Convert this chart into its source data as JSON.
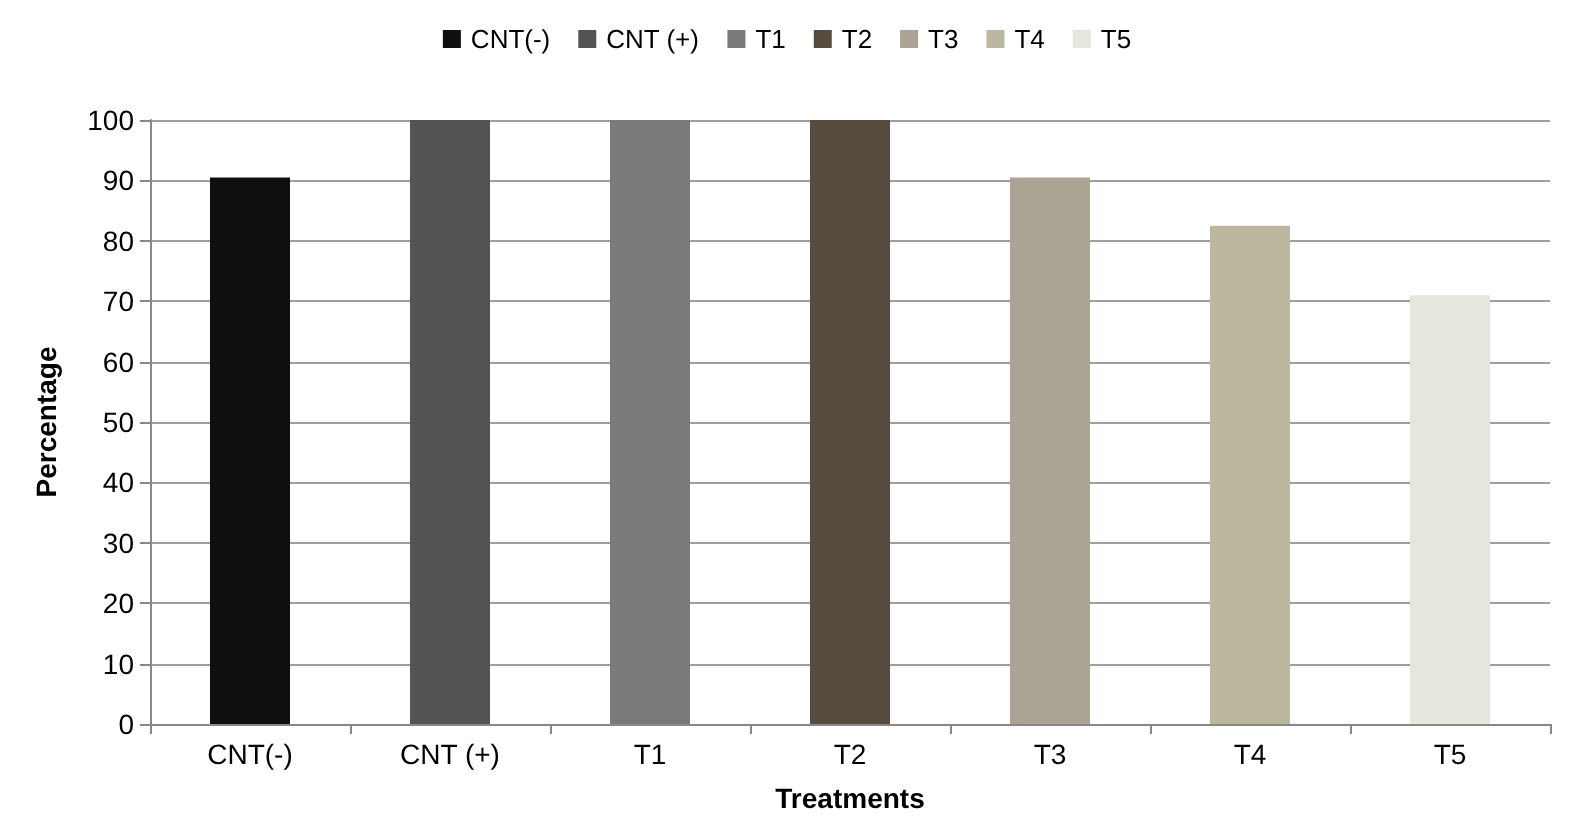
{
  "chart_data": {
    "type": "bar",
    "xlabel": "Treatments",
    "ylabel": "Percentage",
    "categories": [
      "CNT(-)",
      "CNT (+)",
      "T1",
      "T2",
      "T3",
      "T4",
      "T5"
    ],
    "series": [
      {
        "name": "CNT(-)",
        "color": "#0f0f0f",
        "values": [
          90.5,
          null,
          null,
          null,
          null,
          null,
          null
        ]
      },
      {
        "name": "CNT (+)",
        "color": "#545454",
        "values": [
          null,
          100,
          null,
          null,
          null,
          null,
          null
        ]
      },
      {
        "name": "T1",
        "color": "#7a7a7a",
        "values": [
          null,
          null,
          100,
          null,
          null,
          null,
          null
        ]
      },
      {
        "name": "T2",
        "color": "#574b40",
        "values": [
          null,
          null,
          null,
          100,
          null,
          null,
          null
        ]
      },
      {
        "name": "T3",
        "color": "#aba394",
        "values": [
          null,
          null,
          null,
          null,
          90.5,
          null,
          null
        ]
      },
      {
        "name": "T4",
        "color": "#bcb8a0",
        "values": [
          null,
          null,
          null,
          null,
          null,
          82.5,
          null
        ]
      },
      {
        "name": "T5",
        "color": "#e5e6dc",
        "values": [
          null,
          null,
          null,
          null,
          null,
          null,
          71
        ]
      }
    ],
    "stacked": true,
    "ylim": [
      0,
      100
    ],
    "yticks": [
      0,
      10,
      20,
      30,
      40,
      50,
      60,
      70,
      80,
      90,
      100
    ],
    "grid": "y",
    "legend": "top"
  }
}
